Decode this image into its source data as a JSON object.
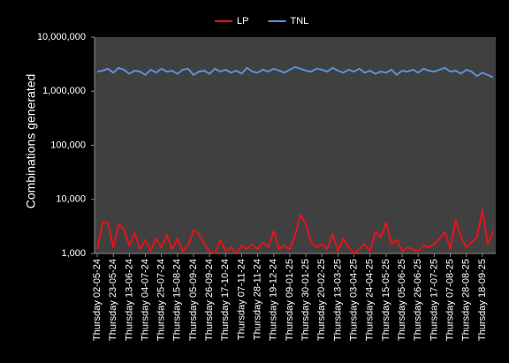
{
  "chart_data": {
    "type": "line",
    "y_label": "Combinations generated",
    "log_scale": true,
    "grid": false,
    "legend": "top",
    "ylim": [
      1000,
      10000000
    ],
    "yticks": [
      {
        "value": 1000,
        "label": "1,000"
      },
      {
        "value": 10000,
        "label": "10,000"
      },
      {
        "value": 100000,
        "label": "100,000"
      },
      {
        "value": 1000000,
        "label": "1,000,000"
      },
      {
        "value": 10000000,
        "label": "10,000,000"
      }
    ],
    "categories": [
      "Thursday 02-05-24",
      null,
      null,
      "Thursday 23-05-24",
      null,
      null,
      "Thursday 13-06-24",
      null,
      null,
      "Thursday 04-07-24",
      null,
      null,
      "Thursday 25-07-24",
      null,
      null,
      "Thursday 15-08-24",
      null,
      null,
      "Thursday 05-09-24",
      null,
      null,
      "Thursday 26-09-24",
      null,
      null,
      "Thursday 17-10-24",
      null,
      null,
      "Thursday 07-11-24",
      null,
      null,
      "Thursday 28-11-24",
      null,
      null,
      "Thursday 19-12-24",
      null,
      null,
      "Thursday 09-01-25",
      null,
      null,
      "Thursday 30-01-25",
      null,
      null,
      "Thursday 20-02-25",
      null,
      null,
      "Thursday 13-03-25",
      null,
      null,
      "Thursday 03-04-25",
      null,
      null,
      "Thursday 24-04-25",
      null,
      null,
      "Thursday 15-05-25",
      null,
      null,
      "Thursday 05-06-25",
      null,
      null,
      "Thursday 26-06-25",
      null,
      null,
      "Thursday 17-07-25",
      null,
      null,
      "Thursday 07-08-25",
      null,
      null,
      "Thursday 28-08-25",
      null,
      null,
      "Thursday 18-09-25",
      null,
      null
    ],
    "series": [
      {
        "name": "LP",
        "color": "#e3141c",
        "values": [
          1200,
          3800,
          3700,
          1300,
          3500,
          2800,
          1400,
          2400,
          1200,
          1800,
          1100,
          1900,
          1300,
          2200,
          1200,
          1900,
          1100,
          1400,
          2700,
          2300,
          1500,
          1100,
          1000,
          1800,
          1100,
          1300,
          1000,
          1400,
          1200,
          1500,
          1200,
          1600,
          1300,
          2600,
          1200,
          1400,
          1200,
          2200,
          5200,
          3500,
          1600,
          1300,
          1500,
          1200,
          2300,
          1100,
          1900,
          1300,
          1000,
          1200,
          1500,
          1100,
          2500,
          2000,
          3700,
          1500,
          1800,
          1100,
          1300,
          1200,
          1100,
          1400,
          1300,
          1500,
          1900,
          2500,
          1200,
          4100,
          2000,
          1300,
          1600,
          2000,
          6300,
          1500,
          2600
        ]
      },
      {
        "name": "TNL",
        "color": "#5b8fd9",
        "values": [
          2300000,
          2400000,
          2600000,
          2200000,
          2700000,
          2500000,
          2100000,
          2400000,
          2300000,
          2000000,
          2500000,
          2200000,
          2600000,
          2300000,
          2400000,
          2100000,
          2500000,
          2600000,
          2000000,
          2300000,
          2400000,
          2100000,
          2600000,
          2300000,
          2500000,
          2200000,
          2400000,
          2100000,
          2700000,
          2300000,
          2200000,
          2500000,
          2300000,
          2600000,
          2400000,
          2200000,
          2500000,
          2800000,
          2600000,
          2400000,
          2300000,
          2600000,
          2500000,
          2300000,
          2700000,
          2400000,
          2200000,
          2500000,
          2300000,
          2600000,
          2200000,
          2400000,
          2100000,
          2300000,
          2200000,
          2500000,
          2000000,
          2400000,
          2300000,
          2500000,
          2200000,
          2600000,
          2400000,
          2300000,
          2500000,
          2700000,
          2300000,
          2400000,
          2100000,
          2500000,
          2300000,
          1900000,
          2200000,
          2000000,
          1800000
        ]
      }
    ]
  }
}
